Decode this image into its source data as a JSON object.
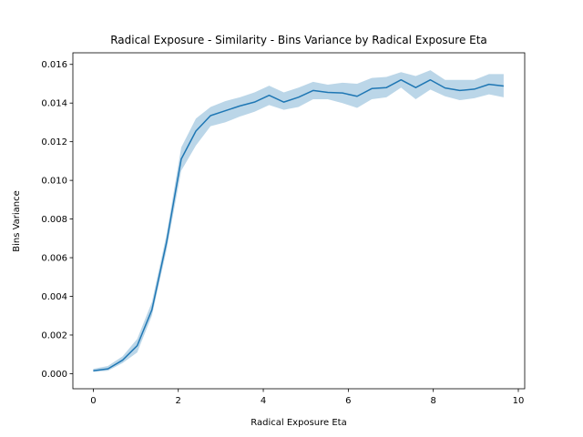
{
  "chart_data": {
    "type": "line",
    "title": "Radical Exposure - Similarity - Bins Variance by Radical Exposure Eta",
    "xlabel": "Radical Exposure Eta",
    "ylabel": "Bins Variance",
    "xlim": [
      -0.48,
      10.15
    ],
    "ylim": [
      -0.00078,
      0.0166
    ],
    "x_ticks": [
      0,
      2,
      4,
      6,
      8,
      10
    ],
    "x_tick_labels": [
      "0",
      "2",
      "4",
      "6",
      "8",
      "10"
    ],
    "y_ticks": [
      0,
      0.002,
      0.004,
      0.006,
      0.008,
      0.01,
      0.012,
      0.014,
      0.016
    ],
    "y_tick_labels": [
      "0.000",
      "0.002",
      "0.004",
      "0.006",
      "0.008",
      "0.010",
      "0.012",
      "0.014",
      "0.016"
    ],
    "grid": false,
    "legend": "none",
    "colors": {
      "line": "#1f77b4",
      "band": "#1f77b4"
    },
    "series": [
      {
        "x": [
          0,
          0.345,
          0.69,
          1.034,
          1.379,
          1.724,
          2.069,
          2.414,
          2.759,
          3.103,
          3.448,
          3.793,
          4.138,
          4.483,
          4.828,
          5.172,
          5.517,
          5.862,
          6.207,
          6.552,
          6.897,
          7.241,
          7.586,
          7.931,
          8.276,
          8.621,
          8.966,
          9.31,
          9.655
        ],
        "y": [
          0.00015,
          0.00025,
          0.0007,
          0.00145,
          0.0033,
          0.0068,
          0.0111,
          0.01255,
          0.01335,
          0.0136,
          0.01385,
          0.01405,
          0.0144,
          0.01405,
          0.0143,
          0.01465,
          0.01455,
          0.01452,
          0.01435,
          0.01475,
          0.0148,
          0.0152,
          0.0148,
          0.0152,
          0.01478,
          0.01465,
          0.01472,
          0.01497,
          0.01488
        ],
        "y_lower": [
          0.0001,
          0.00015,
          0.00055,
          0.0011,
          0.003,
          0.0064,
          0.0105,
          0.0118,
          0.0128,
          0.013,
          0.0133,
          0.01355,
          0.0139,
          0.01365,
          0.0138,
          0.0142,
          0.0142,
          0.014,
          0.01375,
          0.0142,
          0.0143,
          0.0148,
          0.0142,
          0.0147,
          0.01435,
          0.01415,
          0.01425,
          0.01445,
          0.0143
        ],
        "y_upper": [
          0.00025,
          0.0004,
          0.0009,
          0.0018,
          0.0037,
          0.0072,
          0.0117,
          0.0132,
          0.0138,
          0.0141,
          0.0143,
          0.01455,
          0.0149,
          0.01455,
          0.0148,
          0.0151,
          0.01495,
          0.01505,
          0.015,
          0.0153,
          0.01535,
          0.0156,
          0.0154,
          0.0157,
          0.0152,
          0.0152,
          0.0152,
          0.0155,
          0.0155
        ]
      }
    ]
  }
}
